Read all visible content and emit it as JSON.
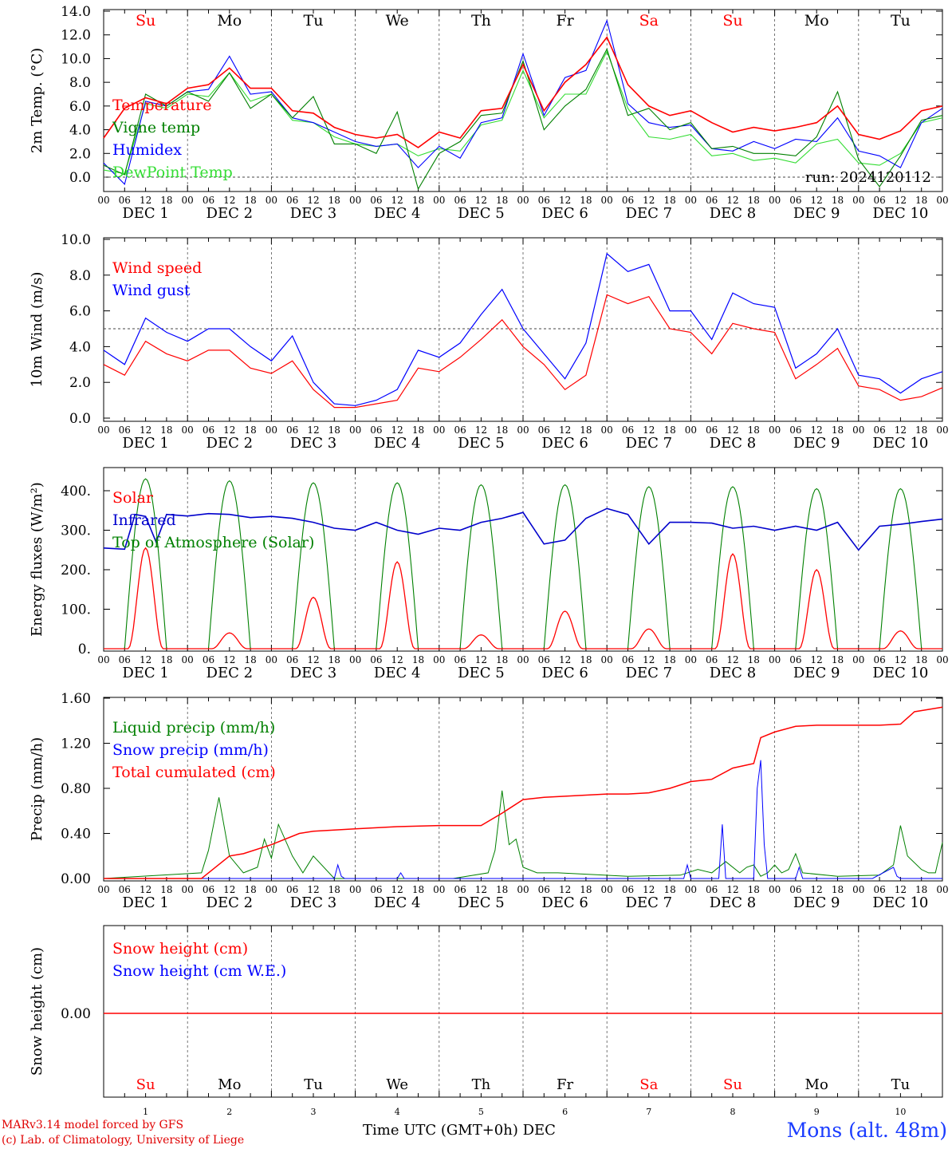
{
  "chart_data": [
    {
      "type": "line",
      "ylabel": "2m Temp. (°C)",
      "ylim": [
        -1,
        14
      ],
      "yticks": [
        "14.0",
        "12.0",
        "10.0",
        "8.0",
        "6.0",
        "4.0",
        "2.0",
        "0.0"
      ],
      "x_unit": "hour index (0-240, 6-hourly ticks)",
      "annotation": "run: 2024120112",
      "series": [
        {
          "name": "Temperature",
          "color": "#ff0000",
          "x": [
            0,
            6,
            12,
            18,
            24,
            30,
            36,
            42,
            48,
            54,
            60,
            66,
            72,
            78,
            84,
            90,
            96,
            102,
            108,
            114,
            120,
            126,
            132,
            138,
            144,
            150,
            156,
            162,
            168,
            174,
            180,
            186,
            192,
            198,
            204,
            210,
            216,
            222,
            228,
            234,
            240
          ],
          "values": [
            3.3,
            5.8,
            6.7,
            6.2,
            7.5,
            7.8,
            9.2,
            7.5,
            7.5,
            5.6,
            5.4,
            4.2,
            3.6,
            3.3,
            3.6,
            2.5,
            3.8,
            3.3,
            5.6,
            5.8,
            9.5,
            5.6,
            8.0,
            9.5,
            11.8,
            7.8,
            6.0,
            5.2,
            5.6,
            4.6,
            3.8,
            4.2,
            3.9,
            4.2,
            4.6,
            6.0,
            3.6,
            3.2,
            3.9,
            5.6,
            6.0
          ]
        },
        {
          "name": "Vigne temp",
          "color": "#008000",
          "x": [
            0,
            6,
            12,
            18,
            24,
            30,
            36,
            42,
            48,
            54,
            60,
            66,
            72,
            78,
            84,
            90,
            96,
            102,
            108,
            114,
            120,
            126,
            132,
            138,
            144,
            150,
            156,
            162,
            168,
            174,
            180,
            186,
            192,
            198,
            204,
            210,
            216,
            222,
            228,
            234,
            240
          ],
          "values": [
            1.0,
            0.2,
            7.0,
            6.0,
            7.2,
            6.4,
            8.8,
            5.8,
            7.0,
            5.0,
            6.8,
            2.8,
            2.8,
            2.0,
            5.5,
            -1.0,
            2.0,
            3.0,
            5.2,
            5.4,
            9.8,
            4.0,
            6.0,
            7.4,
            10.8,
            5.2,
            5.8,
            4.0,
            4.6,
            2.4,
            2.6,
            2.0,
            2.0,
            1.8,
            3.4,
            7.2,
            1.5,
            -0.8,
            1.8,
            4.8,
            5.2
          ]
        },
        {
          "name": "Humidex",
          "color": "#0000ff",
          "x": [
            0,
            6,
            12,
            18,
            24,
            30,
            36,
            42,
            48,
            54,
            60,
            66,
            72,
            78,
            84,
            90,
            96,
            102,
            108,
            114,
            120,
            126,
            132,
            138,
            144,
            150,
            156,
            162,
            168,
            174,
            180,
            186,
            192,
            198,
            204,
            210,
            216,
            222,
            228,
            234,
            240
          ],
          "values": [
            1.2,
            -0.6,
            6.4,
            6.0,
            7.2,
            7.4,
            10.2,
            7.0,
            7.2,
            5.0,
            4.6,
            3.8,
            3.0,
            2.6,
            2.8,
            0.8,
            2.6,
            1.6,
            4.6,
            5.0,
            10.4,
            5.2,
            8.4,
            9.0,
            13.2,
            6.2,
            4.6,
            4.2,
            4.4,
            2.4,
            2.2,
            3.0,
            2.4,
            3.2,
            3.0,
            5.0,
            2.2,
            1.8,
            0.8,
            4.6,
            5.8
          ]
        },
        {
          "name": "DewPoint Temp",
          "color": "#33dd33",
          "x": [
            0,
            6,
            12,
            18,
            24,
            30,
            36,
            42,
            48,
            54,
            60,
            66,
            72,
            78,
            84,
            90,
            96,
            102,
            108,
            114,
            120,
            126,
            132,
            138,
            144,
            150,
            156,
            162,
            168,
            174,
            180,
            186,
            192,
            198,
            204,
            210,
            216,
            222,
            228,
            234,
            240
          ],
          "values": [
            0.6,
            0.3,
            6.2,
            5.8,
            7.0,
            6.8,
            8.8,
            6.4,
            7.0,
            4.8,
            4.6,
            3.4,
            2.8,
            2.6,
            2.8,
            1.8,
            2.4,
            2.2,
            4.4,
            4.8,
            9.0,
            5.0,
            7.0,
            7.0,
            10.6,
            5.8,
            3.4,
            3.2,
            3.6,
            1.8,
            2.0,
            1.4,
            1.6,
            1.2,
            2.8,
            3.2,
            1.2,
            1.0,
            2.0,
            4.6,
            5.0
          ]
        }
      ]
    },
    {
      "type": "line",
      "ylabel": "10m Wind (m/s)",
      "ylim": [
        0,
        10
      ],
      "yticks": [
        "10.0",
        "8.0",
        "6.0",
        "4.0",
        "2.0",
        "0.0"
      ],
      "reference_line": 5,
      "series": [
        {
          "name": "Wind speed",
          "color": "#ff0000",
          "x": [
            0,
            6,
            12,
            18,
            24,
            30,
            36,
            42,
            48,
            54,
            60,
            66,
            72,
            78,
            84,
            90,
            96,
            102,
            108,
            114,
            120,
            126,
            132,
            138,
            144,
            150,
            156,
            162,
            168,
            174,
            180,
            186,
            192,
            198,
            204,
            210,
            216,
            222,
            228,
            234,
            240
          ],
          "values": [
            3.0,
            2.4,
            4.3,
            3.6,
            3.2,
            3.8,
            3.8,
            2.8,
            2.5,
            3.2,
            1.6,
            0.6,
            0.6,
            0.8,
            1.0,
            2.8,
            2.6,
            3.4,
            4.4,
            5.5,
            4.0,
            3.0,
            1.6,
            2.4,
            6.9,
            6.4,
            6.8,
            5.0,
            4.8,
            3.6,
            5.3,
            5.0,
            4.8,
            2.2,
            3.0,
            3.9,
            1.8,
            1.6,
            1.0,
            1.2,
            1.7
          ]
        },
        {
          "name": "Wind gust",
          "color": "#0000ff",
          "x": [
            0,
            6,
            12,
            18,
            24,
            30,
            36,
            42,
            48,
            54,
            60,
            66,
            72,
            78,
            84,
            90,
            96,
            102,
            108,
            114,
            120,
            126,
            132,
            138,
            144,
            150,
            156,
            162,
            168,
            174,
            180,
            186,
            192,
            198,
            204,
            210,
            216,
            222,
            228,
            234,
            240
          ],
          "values": [
            3.8,
            3.0,
            5.6,
            4.8,
            4.3,
            5.0,
            5.0,
            4.0,
            3.2,
            4.6,
            2.0,
            0.8,
            0.7,
            1.0,
            1.6,
            3.8,
            3.4,
            4.2,
            5.8,
            7.2,
            5.0,
            3.6,
            2.2,
            4.2,
            9.2,
            8.2,
            8.6,
            6.0,
            6.0,
            4.4,
            7.0,
            6.4,
            6.2,
            2.8,
            3.6,
            5.0,
            2.4,
            2.2,
            1.4,
            2.2,
            2.6
          ]
        }
      ]
    },
    {
      "type": "line",
      "ylabel": "Energy fluxes (W/m²)",
      "ylim": [
        0,
        450
      ],
      "yticks": [
        "400.",
        "300.",
        "200.",
        "100.",
        "0."
      ],
      "series": [
        {
          "name": "Solar",
          "color": "#ff0000",
          "peaks": [
            {
              "day": 0,
              "value": 255
            },
            {
              "day": 1,
              "value": 40
            },
            {
              "day": 2,
              "value": 130
            },
            {
              "day": 3,
              "value": 220
            },
            {
              "day": 4,
              "value": 35
            },
            {
              "day": 5,
              "value": 95
            },
            {
              "day": 6,
              "value": 50
            },
            {
              "day": 7,
              "value": 240
            },
            {
              "day": 8,
              "value": 200
            },
            {
              "day": 9,
              "value": 45
            }
          ]
        },
        {
          "name": "Infrared",
          "color": "#0000cc",
          "x": [
            0,
            6,
            9,
            12,
            15,
            18,
            24,
            30,
            36,
            42,
            48,
            54,
            60,
            66,
            72,
            78,
            84,
            90,
            96,
            102,
            108,
            114,
            120,
            126,
            132,
            138,
            144,
            150,
            156,
            162,
            168,
            174,
            180,
            186,
            192,
            198,
            204,
            210,
            216,
            222,
            228,
            234,
            240
          ],
          "values": [
            255,
            252,
            340,
            335,
            270,
            340,
            336,
            342,
            340,
            332,
            335,
            330,
            320,
            305,
            300,
            320,
            300,
            290,
            305,
            300,
            320,
            330,
            345,
            265,
            275,
            330,
            355,
            340,
            265,
            320,
            320,
            318,
            305,
            310,
            300,
            310,
            300,
            320,
            250,
            310,
            315,
            322,
            328
          ]
        },
        {
          "name": "Top of Atmosphere (Solar)",
          "color": "#008000",
          "peaks": [
            {
              "day": 0,
              "value": 430
            },
            {
              "day": 1,
              "value": 425
            },
            {
              "day": 2,
              "value": 420
            },
            {
              "day": 3,
              "value": 420
            },
            {
              "day": 4,
              "value": 415
            },
            {
              "day": 5,
              "value": 415
            },
            {
              "day": 6,
              "value": 410
            },
            {
              "day": 7,
              "value": 410
            },
            {
              "day": 8,
              "value": 405
            },
            {
              "day": 9,
              "value": 405
            }
          ]
        }
      ]
    },
    {
      "type": "line",
      "ylabel": "Precip (mm/h)",
      "ylim": [
        0,
        1.6
      ],
      "yticks": [
        "1.60",
        "1.20",
        "0.80",
        "0.40",
        "0.00"
      ],
      "series": [
        {
          "name": "Liquid precip (mm/h)",
          "color": "#008000",
          "x": [
            0,
            28,
            30,
            33,
            36,
            40,
            44,
            46,
            48,
            50,
            54,
            57,
            60,
            66,
            90,
            100,
            110,
            112,
            114,
            116,
            118,
            120,
            124,
            130,
            150,
            165,
            170,
            174,
            178,
            182,
            184,
            186,
            188,
            190,
            192,
            194,
            196,
            198,
            200,
            210,
            222,
            226,
            228,
            230,
            234,
            236,
            238,
            240
          ],
          "values": [
            0,
            0.05,
            0.25,
            0.72,
            0.2,
            0.05,
            0.1,
            0.35,
            0.18,
            0.48,
            0.2,
            0.05,
            0.2,
            0,
            0,
            0,
            0.05,
            0.25,
            0.78,
            0.3,
            0.35,
            0.1,
            0.05,
            0.05,
            0.02,
            0.03,
            0.08,
            0.05,
            0.15,
            0.05,
            0.1,
            0.12,
            0.02,
            0.05,
            0.12,
            0.05,
            0.08,
            0.22,
            0.05,
            0.02,
            0.03,
            0.12,
            0.47,
            0.2,
            0.08,
            0.05,
            0.05,
            0.32
          ]
        },
        {
          "name": "Snow precip (mm/h)",
          "color": "#0000ff",
          "x": [
            0,
            66,
            67,
            68,
            69,
            84,
            85,
            86,
            140,
            166,
            167,
            168,
            176,
            177,
            178,
            186,
            187,
            188,
            189,
            190,
            198,
            199,
            200,
            220,
            226,
            227,
            228,
            240
          ],
          "values": [
            0,
            0,
            0.12,
            0.02,
            0,
            0,
            0.05,
            0,
            0,
            0,
            0.12,
            0,
            0,
            0.48,
            0,
            0,
            0.8,
            1.05,
            0.3,
            0,
            0,
            0.1,
            0,
            0,
            0.1,
            0.02,
            0,
            0
          ]
        },
        {
          "name": "Total cumulated (cm)",
          "color": "#ff0000",
          "x": [
            0,
            28,
            36,
            40,
            48,
            56,
            60,
            66,
            72,
            84,
            96,
            108,
            114,
            120,
            126,
            132,
            138,
            144,
            150,
            156,
            162,
            168,
            174,
            180,
            186,
            188,
            192,
            198,
            204,
            210,
            216,
            222,
            228,
            232,
            240
          ],
          "values": [
            0,
            0,
            0.2,
            0.22,
            0.3,
            0.4,
            0.42,
            0.43,
            0.44,
            0.46,
            0.47,
            0.47,
            0.58,
            0.7,
            0.72,
            0.73,
            0.74,
            0.75,
            0.75,
            0.76,
            0.8,
            0.86,
            0.88,
            0.98,
            1.02,
            1.25,
            1.3,
            1.35,
            1.36,
            1.36,
            1.36,
            1.36,
            1.37,
            1.48,
            1.52
          ]
        }
      ]
    },
    {
      "type": "line",
      "ylabel": "Snow height (cm)",
      "yticks": [
        "0.00"
      ],
      "series": [
        {
          "name": "Snow height (cm)",
          "color": "#ff0000",
          "values": [
            0,
            0
          ]
        },
        {
          "name": "Snow height (cm W.E.)",
          "color": "#0000ff",
          "values": [
            0,
            0
          ]
        }
      ]
    }
  ],
  "weekdays": [
    {
      "label": "Su",
      "color": "#ff0000"
    },
    {
      "label": "Mo",
      "color": "#000000"
    },
    {
      "label": "Tu",
      "color": "#000000"
    },
    {
      "label": "We",
      "color": "#000000"
    },
    {
      "label": "Th",
      "color": "#000000"
    },
    {
      "label": "Fr",
      "color": "#000000"
    },
    {
      "label": "Sa",
      "color": "#ff0000"
    },
    {
      "label": "Su",
      "color": "#ff0000"
    },
    {
      "label": "Mo",
      "color": "#000000"
    },
    {
      "label": "Tu",
      "color": "#000000"
    }
  ],
  "day_numbers": [
    "1",
    "2",
    "3",
    "4",
    "5",
    "6",
    "7",
    "8",
    "9",
    "10"
  ],
  "date_labels": [
    "DEC  1",
    "DEC  2",
    "DEC  3",
    "DEC  4",
    "DEC  5",
    "DEC  6",
    "DEC  7",
    "DEC  8",
    "DEC  9",
    "DEC 10"
  ],
  "hour_ticks": [
    "00",
    "06",
    "12",
    "18"
  ],
  "end_tick": "00",
  "footer": {
    "model": "MARv3.14 model forced by GFS",
    "lab": "(c) Lab. of Climatology, University of Liege",
    "axis_title": "Time UTC (GMT+0h) DEC",
    "station": "Mons (alt. 48m)"
  }
}
